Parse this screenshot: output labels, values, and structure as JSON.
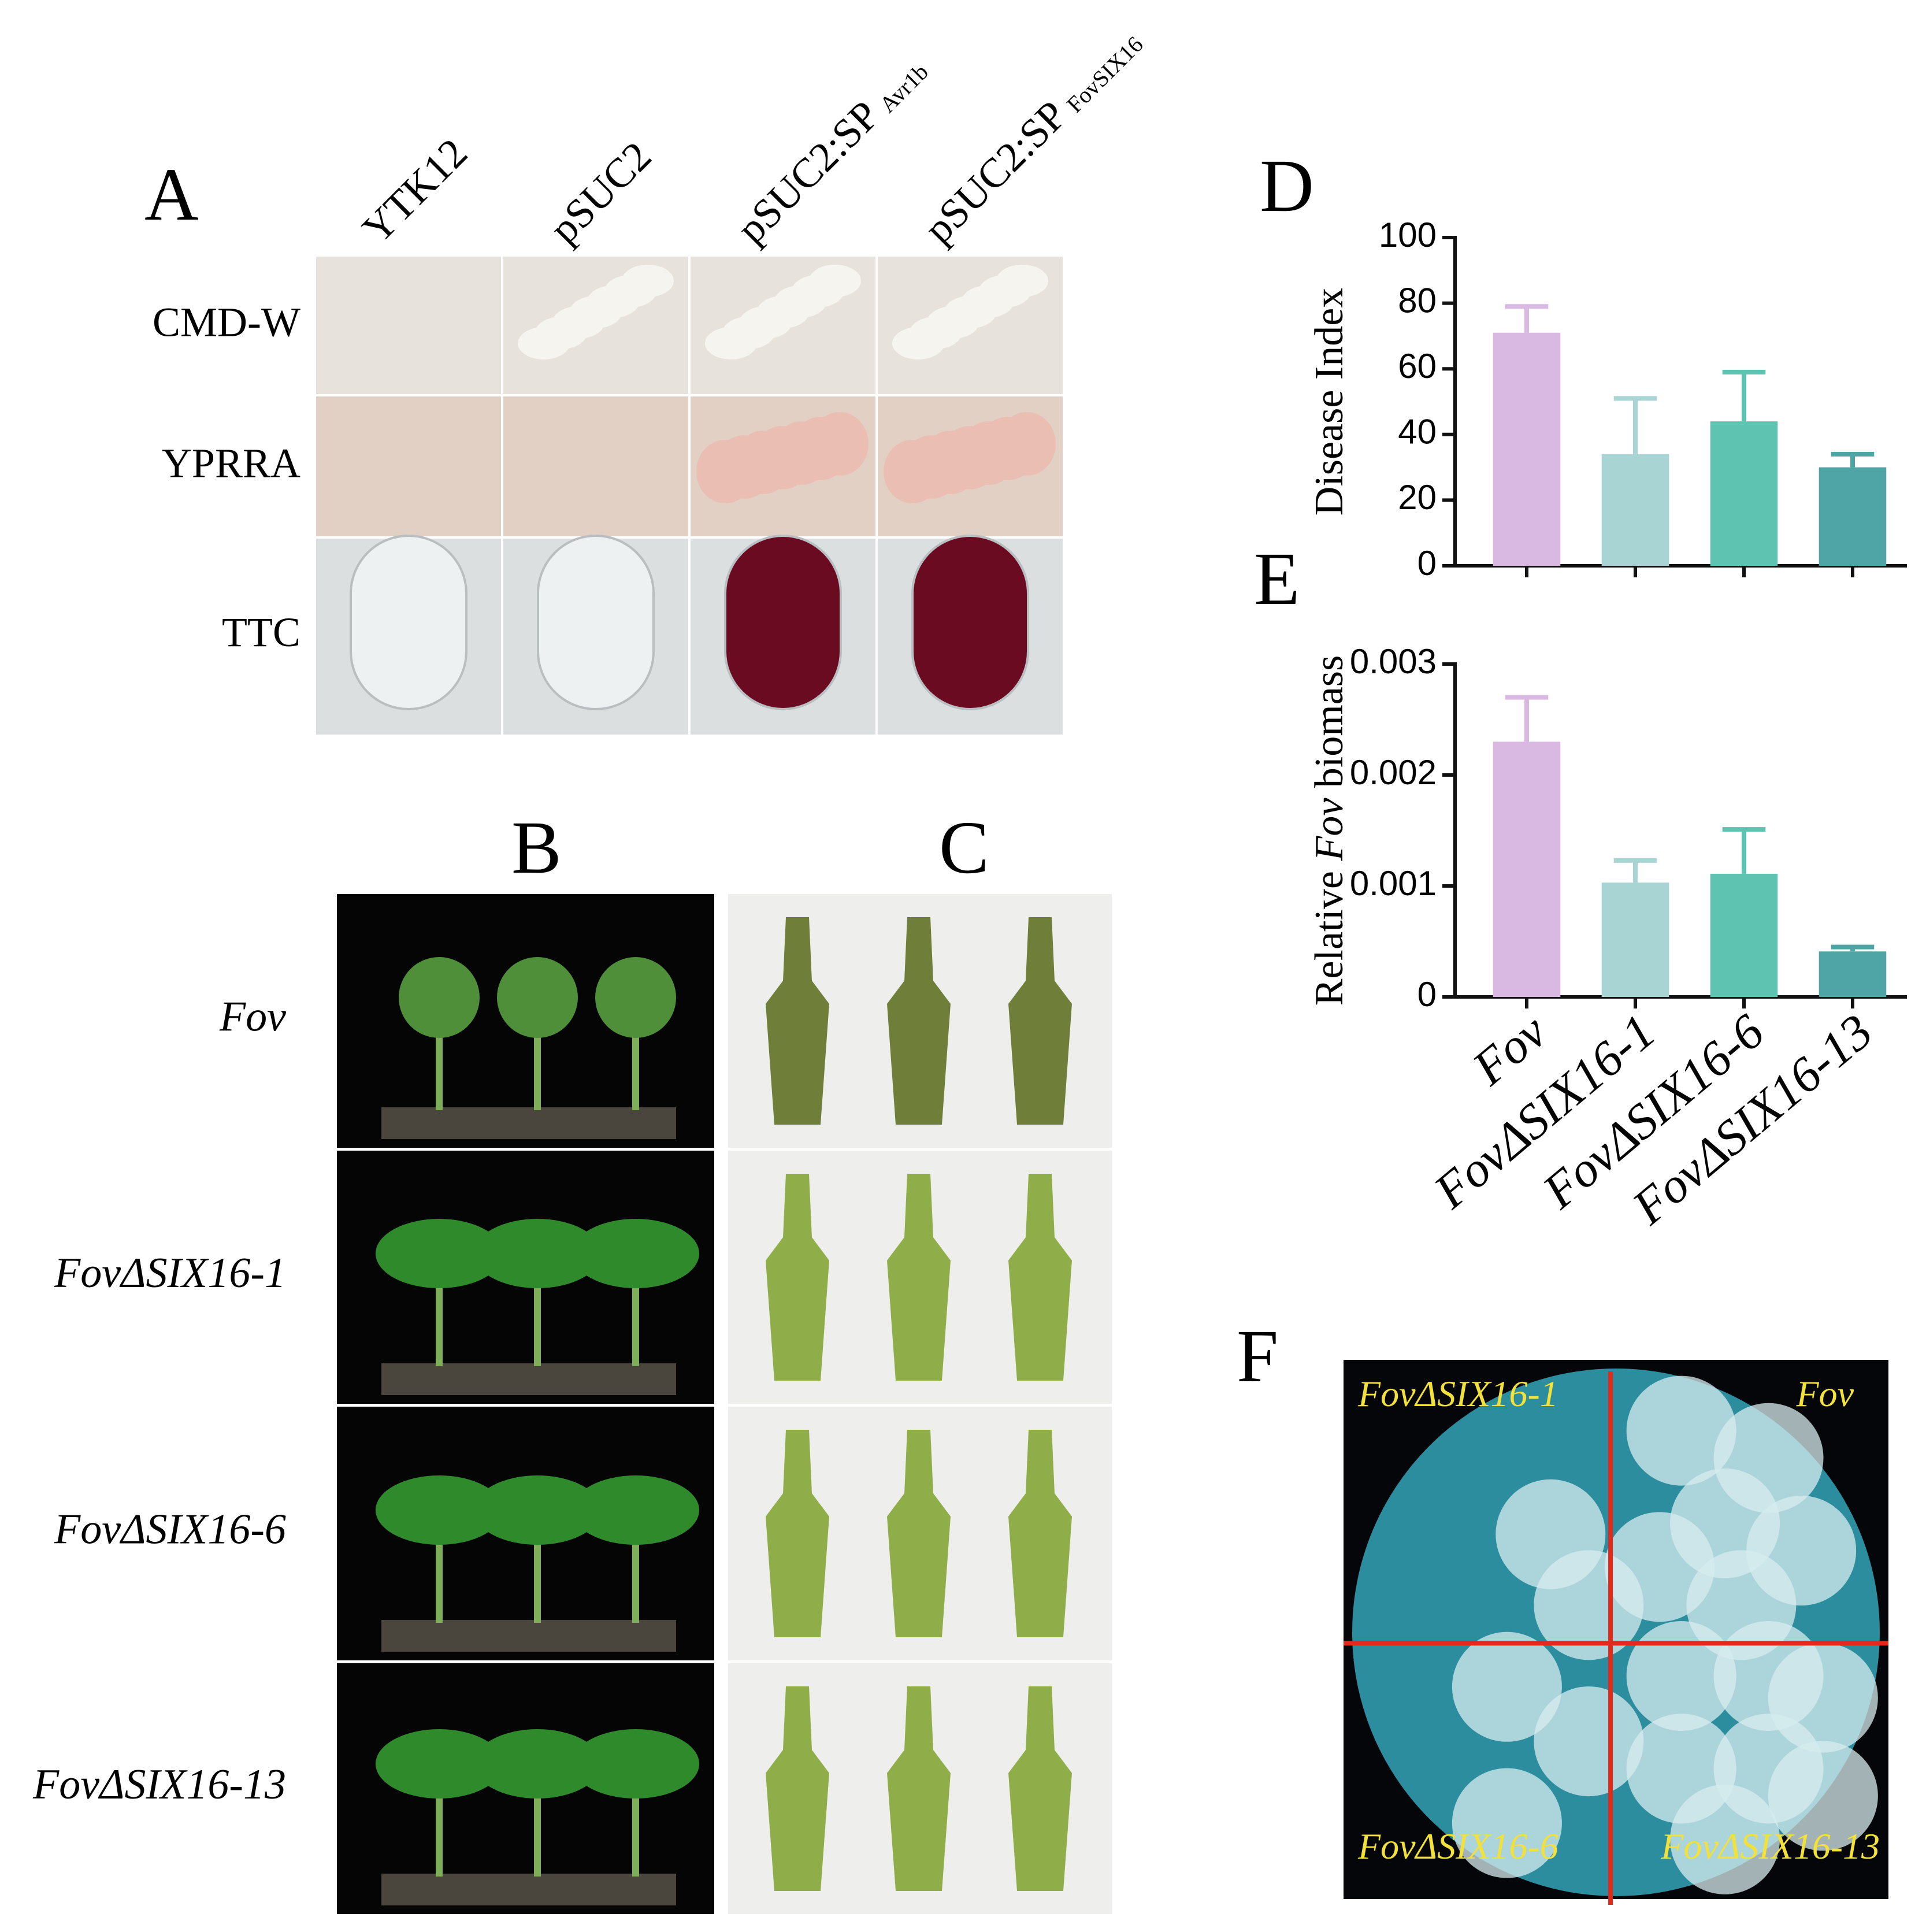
{
  "panel_A": {
    "label": "A",
    "columns": [
      {
        "text": "YTK12"
      },
      {
        "text": "pSUC2"
      },
      {
        "text": "pSUC2:SP",
        "sub": "Avr1b"
      },
      {
        "text": "pSUC2:SP",
        "sub": "FovSIX16"
      }
    ],
    "rows": [
      "CMD-W",
      "YPRRA",
      "TTC"
    ]
  },
  "panel_B": {
    "label": "B"
  },
  "panel_C": {
    "label": "C"
  },
  "strains": [
    "Fov",
    "FovΔSIX16-1",
    "FovΔSIX16-6",
    "FovΔSIX16-13"
  ],
  "chart_data": [
    {
      "type": "bar",
      "panel": "D",
      "ylabel": [
        {
          "text": "Disease Index"
        }
      ],
      "values": [
        71,
        34,
        44,
        30
      ],
      "errors": [
        8,
        17,
        15,
        4
      ],
      "colors": [
        "#d9b8e1",
        "#a8d4d4",
        "#5fc3b2",
        "#4fa5a5"
      ],
      "ylim": [
        0,
        100
      ],
      "yticks": [
        0,
        20,
        40,
        60,
        80,
        100
      ]
    },
    {
      "type": "bar",
      "panel": "E",
      "ylabel": [
        {
          "text": "Relative "
        },
        {
          "text": "Fov",
          "italic": true
        },
        {
          "text": " biomass"
        }
      ],
      "categories": [
        "Fov",
        "FovΔSIX16-1",
        "FovΔSIX16-6",
        "FovΔSIX16-13"
      ],
      "values": [
        0.0023,
        0.00103,
        0.00111,
        0.00041
      ],
      "errors": [
        0.0004,
        0.0002,
        0.0004,
        4e-05
      ],
      "colors": [
        "#d9b8e1",
        "#a8d4d4",
        "#5fc3b2",
        "#4fa5a5"
      ],
      "ylim": [
        0,
        0.003
      ],
      "yticks": [
        0,
        0.001,
        0.002,
        0.003
      ]
    }
  ],
  "panel_F": {
    "label": "F",
    "quadrants": [
      "FovΔSIX16-1",
      "Fov",
      "FovΔSIX16-6",
      "FovΔSIX16-13"
    ]
  }
}
